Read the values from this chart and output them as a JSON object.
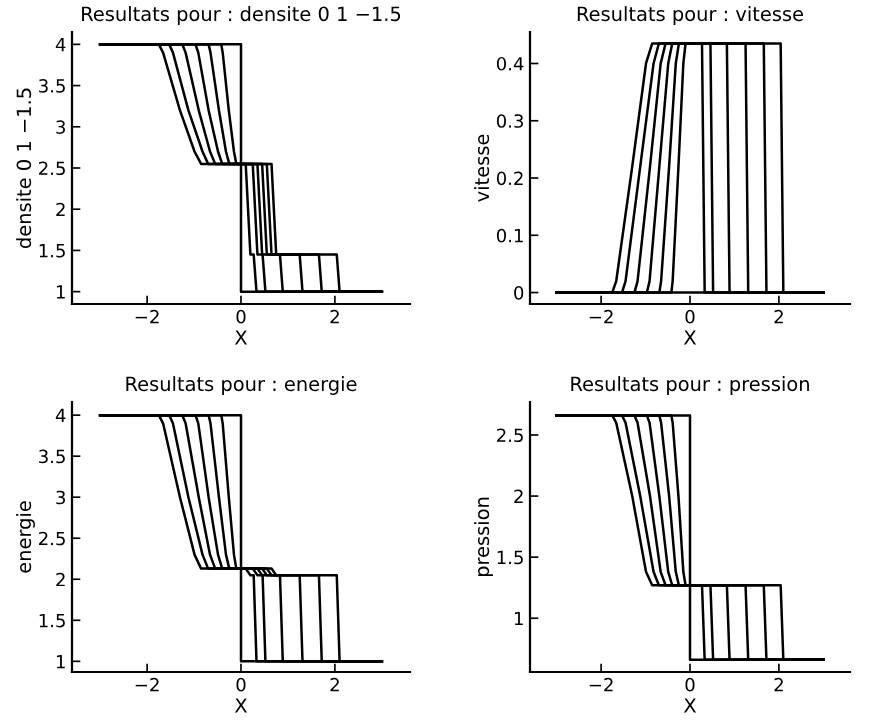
{
  "chart_data": [
    {
      "type": "line",
      "title": "Resultats pour : densite 0 1 −1.5",
      "xlabel": "X",
      "ylabel": "densite 0 1 −1.5",
      "xlim": [
        -3.6,
        3.6
      ],
      "ylim": [
        0.85,
        4.15
      ],
      "xticks": [
        -2,
        0,
        2
      ],
      "yticks": [
        1,
        1.5,
        2,
        2.5,
        3,
        3.5,
        4
      ],
      "grid": false,
      "legend": false,
      "marker": "none",
      "line_style": "solid",
      "series": [
        {
          "color": "#000000",
          "x": [
            -3,
            0,
            0,
            3
          ],
          "values": [
            4,
            4,
            1,
            1
          ]
        },
        {
          "color": "#000000",
          "x": [
            -3,
            -0.42,
            -0.39,
            -0.26,
            -0.15,
            -0.1,
            0.1,
            0.15,
            0.2,
            0.27,
            0.33,
            3
          ],
          "values": [
            4,
            4,
            3.9,
            3.2,
            2.7,
            2.55,
            2.55,
            2.0,
            1.45,
            1.45,
            1,
            1
          ]
        },
        {
          "color": "#000000",
          "x": [
            -3,
            -0.69,
            -0.65,
            -0.47,
            -0.32,
            -0.25,
            0.25,
            0.3,
            0.35,
            0.46,
            0.52,
            3
          ],
          "values": [
            4,
            4,
            3.9,
            3.2,
            2.7,
            2.55,
            2.55,
            2.0,
            1.45,
            1.45,
            1,
            1
          ]
        },
        {
          "color": "#000000",
          "x": [
            -3,
            -0.97,
            -0.91,
            -0.69,
            -0.49,
            -0.4,
            0.35,
            0.4,
            0.45,
            0.83,
            0.89,
            3
          ],
          "values": [
            4,
            4,
            3.9,
            3.2,
            2.7,
            2.55,
            2.55,
            2.0,
            1.45,
            1.45,
            1,
            1
          ]
        },
        {
          "color": "#000000",
          "x": [
            -3,
            -1.25,
            -1.18,
            -0.9,
            -0.66,
            -0.55,
            0.45,
            0.5,
            0.55,
            1.25,
            1.31,
            3
          ],
          "values": [
            4,
            4,
            3.9,
            3.2,
            2.7,
            2.55,
            2.55,
            2.0,
            1.45,
            1.45,
            1,
            1
          ]
        },
        {
          "color": "#000000",
          "x": [
            -3,
            -1.53,
            -1.45,
            -1.12,
            -0.82,
            -0.7,
            0.55,
            0.6,
            0.65,
            1.66,
            1.72,
            3
          ],
          "values": [
            4,
            4,
            3.9,
            3.2,
            2.7,
            2.55,
            2.55,
            2.0,
            1.45,
            1.45,
            1,
            1
          ]
        },
        {
          "color": "#000000",
          "x": [
            -3,
            -1.75,
            -1.66,
            -1.3,
            -0.99,
            -0.85,
            0.65,
            0.7,
            0.75,
            2.04,
            2.1,
            3
          ],
          "values": [
            4,
            4,
            3.9,
            3.2,
            2.7,
            2.55,
            2.55,
            2.0,
            1.45,
            1.45,
            1,
            1
          ]
        }
      ]
    },
    {
      "type": "line",
      "title": "Resultats pour : vitesse",
      "xlabel": "X",
      "ylabel": "vitesse",
      "xlim": [
        -3.6,
        3.6
      ],
      "ylim": [
        -0.02,
        0.455
      ],
      "xticks": [
        -2,
        0,
        2
      ],
      "yticks": [
        0,
        0.1,
        0.2,
        0.3,
        0.4
      ],
      "grid": false,
      "legend": false,
      "marker": "none",
      "line_style": "solid",
      "series": [
        {
          "color": "#000000",
          "x": [
            -3,
            3
          ],
          "values": [
            0,
            0
          ]
        },
        {
          "color": "#000000",
          "x": [
            -3,
            -0.42,
            -0.39,
            -0.26,
            -0.15,
            -0.1,
            0.1,
            0.15,
            0.2,
            0.27,
            0.33,
            3
          ],
          "values": [
            0,
            0,
            0.02,
            0.22,
            0.4,
            0.435,
            0.435,
            0.435,
            0.435,
            0.435,
            0,
            0
          ]
        },
        {
          "color": "#000000",
          "x": [
            -3,
            -0.69,
            -0.65,
            -0.47,
            -0.32,
            -0.25,
            0.25,
            0.3,
            0.35,
            0.46,
            0.52,
            3
          ],
          "values": [
            0,
            0,
            0.02,
            0.22,
            0.4,
            0.435,
            0.435,
            0.435,
            0.435,
            0.435,
            0,
            0
          ]
        },
        {
          "color": "#000000",
          "x": [
            -3,
            -0.97,
            -0.91,
            -0.69,
            -0.49,
            -0.4,
            0.35,
            0.4,
            0.45,
            0.83,
            0.89,
            3
          ],
          "values": [
            0,
            0,
            0.02,
            0.22,
            0.4,
            0.435,
            0.435,
            0.435,
            0.435,
            0.435,
            0,
            0
          ]
        },
        {
          "color": "#000000",
          "x": [
            -3,
            -1.25,
            -1.18,
            -0.9,
            -0.66,
            -0.55,
            0.45,
            0.5,
            0.55,
            1.25,
            1.31,
            3
          ],
          "values": [
            0,
            0,
            0.02,
            0.22,
            0.4,
            0.435,
            0.435,
            0.435,
            0.435,
            0.435,
            0,
            0
          ]
        },
        {
          "color": "#000000",
          "x": [
            -3,
            -1.53,
            -1.45,
            -1.12,
            -0.82,
            -0.7,
            0.55,
            0.6,
            0.65,
            1.66,
            1.72,
            3
          ],
          "values": [
            0,
            0,
            0.02,
            0.22,
            0.4,
            0.435,
            0.435,
            0.435,
            0.435,
            0.435,
            0,
            0
          ]
        },
        {
          "color": "#000000",
          "x": [
            -3,
            -1.75,
            -1.66,
            -1.3,
            -0.99,
            -0.85,
            0.65,
            0.7,
            0.75,
            2.04,
            2.1,
            3
          ],
          "values": [
            0,
            0,
            0.02,
            0.22,
            0.4,
            0.435,
            0.435,
            0.435,
            0.435,
            0.435,
            0,
            0
          ]
        }
      ]
    },
    {
      "type": "line",
      "title": "Resultats pour : energie",
      "xlabel": "X",
      "ylabel": "energie",
      "xlim": [
        -3.6,
        3.6
      ],
      "ylim": [
        0.87,
        4.16
      ],
      "xticks": [
        -2,
        0,
        2
      ],
      "yticks": [
        1,
        1.5,
        2,
        2.5,
        3,
        3.5,
        4
      ],
      "grid": false,
      "legend": false,
      "marker": "none",
      "line_style": "solid",
      "series": [
        {
          "color": "#000000",
          "x": [
            -3,
            0,
            0,
            3
          ],
          "values": [
            4,
            4,
            1,
            1
          ]
        },
        {
          "color": "#000000",
          "x": [
            -3,
            -0.42,
            -0.39,
            -0.26,
            -0.15,
            -0.1,
            0.1,
            0.15,
            0.2,
            0.27,
            0.33,
            3
          ],
          "values": [
            4,
            4,
            3.9,
            3.0,
            2.3,
            2.13,
            2.13,
            2.09,
            2.05,
            2.05,
            1,
            1
          ]
        },
        {
          "color": "#000000",
          "x": [
            -3,
            -0.69,
            -0.65,
            -0.47,
            -0.32,
            -0.25,
            0.25,
            0.3,
            0.35,
            0.46,
            0.52,
            3
          ],
          "values": [
            4,
            4,
            3.9,
            3.0,
            2.3,
            2.13,
            2.13,
            2.09,
            2.05,
            2.05,
            1,
            1
          ]
        },
        {
          "color": "#000000",
          "x": [
            -3,
            -0.97,
            -0.91,
            -0.69,
            -0.49,
            -0.4,
            0.35,
            0.4,
            0.45,
            0.83,
            0.89,
            3
          ],
          "values": [
            4,
            4,
            3.9,
            3.0,
            2.3,
            2.13,
            2.13,
            2.09,
            2.05,
            2.05,
            1,
            1
          ]
        },
        {
          "color": "#000000",
          "x": [
            -3,
            -1.25,
            -1.18,
            -0.9,
            -0.66,
            -0.55,
            0.45,
            0.5,
            0.55,
            1.25,
            1.31,
            3
          ],
          "values": [
            4,
            4,
            3.9,
            3.0,
            2.3,
            2.13,
            2.13,
            2.09,
            2.05,
            2.05,
            1,
            1
          ]
        },
        {
          "color": "#000000",
          "x": [
            -3,
            -1.53,
            -1.45,
            -1.12,
            -0.82,
            -0.7,
            0.55,
            0.6,
            0.65,
            1.66,
            1.72,
            3
          ],
          "values": [
            4,
            4,
            3.9,
            3.0,
            2.3,
            2.13,
            2.13,
            2.09,
            2.05,
            2.05,
            1,
            1
          ]
        },
        {
          "color": "#000000",
          "x": [
            -3,
            -1.75,
            -1.66,
            -1.3,
            -0.99,
            -0.85,
            0.65,
            0.7,
            0.75,
            2.04,
            2.1,
            3
          ],
          "values": [
            4,
            4,
            3.9,
            3.0,
            2.3,
            2.13,
            2.13,
            2.09,
            2.05,
            2.05,
            1,
            1
          ]
        }
      ]
    },
    {
      "type": "line",
      "title": "Resultats pour : pression",
      "xlabel": "X",
      "ylabel": "pression",
      "xlim": [
        -3.6,
        3.6
      ],
      "ylim": [
        0.56,
        2.77
      ],
      "xticks": [
        -2,
        0,
        2
      ],
      "yticks": [
        1,
        1.5,
        2,
        2.5
      ],
      "grid": false,
      "legend": false,
      "marker": "none",
      "line_style": "solid",
      "series": [
        {
          "color": "#000000",
          "x": [
            -3,
            0,
            0,
            3
          ],
          "values": [
            2.66,
            2.66,
            0.66,
            0.66
          ]
        },
        {
          "color": "#000000",
          "x": [
            -3,
            -0.42,
            -0.39,
            -0.26,
            -0.15,
            -0.1,
            0.27,
            0.33,
            3
          ],
          "values": [
            2.66,
            2.66,
            2.6,
            2.0,
            1.38,
            1.27,
            1.27,
            0.66,
            0.66
          ]
        },
        {
          "color": "#000000",
          "x": [
            -3,
            -0.69,
            -0.65,
            -0.47,
            -0.32,
            -0.25,
            0.46,
            0.52,
            3
          ],
          "values": [
            2.66,
            2.66,
            2.6,
            2.0,
            1.38,
            1.27,
            1.27,
            0.66,
            0.66
          ]
        },
        {
          "color": "#000000",
          "x": [
            -3,
            -0.97,
            -0.91,
            -0.69,
            -0.49,
            -0.4,
            0.83,
            0.89,
            3
          ],
          "values": [
            2.66,
            2.66,
            2.6,
            2.0,
            1.38,
            1.27,
            1.27,
            0.66,
            0.66
          ]
        },
        {
          "color": "#000000",
          "x": [
            -3,
            -1.25,
            -1.18,
            -0.9,
            -0.66,
            -0.55,
            1.25,
            1.31,
            3
          ],
          "values": [
            2.66,
            2.66,
            2.6,
            2.0,
            1.38,
            1.27,
            1.27,
            0.66,
            0.66
          ]
        },
        {
          "color": "#000000",
          "x": [
            -3,
            -1.53,
            -1.45,
            -1.12,
            -0.82,
            -0.7,
            1.66,
            1.72,
            3
          ],
          "values": [
            2.66,
            2.66,
            2.6,
            2.0,
            1.38,
            1.27,
            1.27,
            0.66,
            0.66
          ]
        },
        {
          "color": "#000000",
          "x": [
            -3,
            -1.75,
            -1.66,
            -1.3,
            -0.99,
            -0.85,
            2.04,
            2.1,
            3
          ],
          "values": [
            2.66,
            2.66,
            2.6,
            2.0,
            1.38,
            1.27,
            1.27,
            0.66,
            0.66
          ]
        }
      ]
    }
  ]
}
